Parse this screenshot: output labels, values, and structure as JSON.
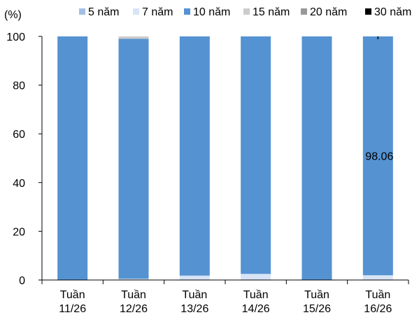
{
  "chart_data": {
    "type": "bar",
    "stacked": true,
    "ylabel": "(%)",
    "ylim": [
      0,
      100
    ],
    "yticks": [
      0,
      20,
      40,
      60,
      80,
      100
    ],
    "grid": false,
    "legend_position": "top",
    "categories": [
      [
        "Tuần",
        "11/26"
      ],
      [
        "Tuần",
        "12/26"
      ],
      [
        "Tuần",
        "13/26"
      ],
      [
        "Tuần",
        "14/26"
      ],
      [
        "Tuần",
        "15/26"
      ],
      [
        "Tuần",
        "16/26"
      ]
    ],
    "series": [
      {
        "name": "5 năm",
        "color": "#a4bfe6",
        "values": [
          0,
          0,
          0,
          0,
          0,
          0
        ]
      },
      {
        "name": "7 năm",
        "color": "#d8e4f5",
        "values": [
          0,
          0.5,
          1.8,
          2.5,
          0,
          1.94
        ]
      },
      {
        "name": "10 năm",
        "color": "#5592d2",
        "values": [
          100,
          98.5,
          98.2,
          97.5,
          100,
          98.06
        ]
      },
      {
        "name": "15 năm",
        "color": "#cccccc",
        "values": [
          0,
          1.0,
          0,
          0,
          0,
          0
        ]
      },
      {
        "name": "20 năm",
        "color": "#999999",
        "values": [
          0,
          0,
          0,
          0,
          0,
          0
        ]
      },
      {
        "name": "30 năm",
        "color": "#000000",
        "values": [
          0,
          0,
          0,
          0,
          0,
          0
        ]
      }
    ],
    "data_labels": [
      {
        "category_index": 5,
        "series": "10 năm",
        "text": "98.06"
      }
    ]
  }
}
